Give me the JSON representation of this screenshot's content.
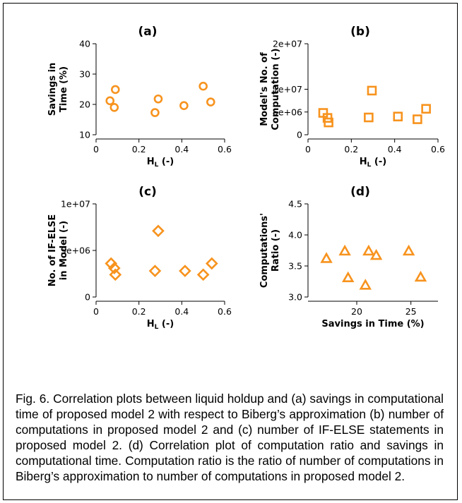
{
  "colors": {
    "marker": "#f7931e",
    "axis": "#000000"
  },
  "chart_data": [
    {
      "id": "a",
      "panel_label": "(a)",
      "type": "scatter",
      "marker": "circle",
      "xlabel_main": "H",
      "xlabel_sub": "L",
      "xlabel_rest": " (-)",
      "ylabel_lines": [
        "Savings in",
        "Time (%)"
      ],
      "xlim": [
        0,
        0.6
      ],
      "ylim": [
        10,
        40
      ],
      "xticks": [
        0,
        0.2,
        0.4,
        0.6
      ],
      "xtick_labels": [
        "0",
        "0.2",
        "0.4",
        "0.6"
      ],
      "yticks": [
        10,
        20,
        30,
        40
      ],
      "ytick_labels": [
        "10",
        "20",
        "30",
        "40"
      ],
      "x": [
        0.065,
        0.085,
        0.09,
        0.275,
        0.29,
        0.41,
        0.5,
        0.535
      ],
      "y": [
        21.2,
        19.0,
        24.9,
        17.3,
        21.8,
        19.6,
        26.0,
        20.8
      ]
    },
    {
      "id": "b",
      "panel_label": "(b)",
      "type": "scatter",
      "marker": "square",
      "xlabel_main": "H",
      "xlabel_sub": "L",
      "xlabel_rest": " (-)",
      "ylabel_lines": [
        "Model's No. of",
        "Computation (-)"
      ],
      "xlim": [
        0,
        0.6
      ],
      "ylim": [
        0,
        20000000
      ],
      "xticks": [
        0,
        0.2,
        0.4,
        0.6
      ],
      "xtick_labels": [
        "0",
        "0.2",
        "0.4",
        "0.6"
      ],
      "yticks": [
        0,
        5000000,
        10000000,
        20000000
      ],
      "ytick_labels": [
        "0",
        "5e+06",
        "1e+07",
        "2e+07"
      ],
      "x": [
        0.07,
        0.09,
        0.095,
        0.28,
        0.295,
        0.415,
        0.505,
        0.545
      ],
      "y": [
        4800000,
        3700000,
        2700000,
        3800000,
        9700000,
        4000000,
        3400000,
        5700000
      ]
    },
    {
      "id": "c",
      "panel_label": "(c)",
      "type": "scatter",
      "marker": "diamond",
      "xlabel_main": "H",
      "xlabel_sub": "L",
      "xlabel_rest": " (-)",
      "ylabel_lines": [
        "No. of IF-ELSE",
        "in Model (-)"
      ],
      "xlim": [
        0,
        0.6
      ],
      "ylim": [
        0,
        10000000
      ],
      "xticks": [
        0,
        0.2,
        0.4,
        0.6
      ],
      "xtick_labels": [
        "0",
        "0.2",
        "0.4",
        "0.6"
      ],
      "yticks": [
        0,
        5000000,
        10000000
      ],
      "ytick_labels": [
        "0",
        "5e+06",
        "1e+07"
      ],
      "x": [
        0.07,
        0.085,
        0.09,
        0.275,
        0.29,
        0.415,
        0.5,
        0.54
      ],
      "y": [
        3600000,
        3100000,
        2400000,
        2800000,
        7100000,
        2800000,
        2400000,
        3600000
      ]
    },
    {
      "id": "d",
      "panel_label": "(d)",
      "type": "scatter",
      "marker": "triangle",
      "xlabel": "Savings in Time (%)",
      "ylabel_lines": [
        "Computations'",
        "Ratio (-)"
      ],
      "xlim": [
        15.5,
        27.5
      ],
      "ylim": [
        3.0,
        4.5
      ],
      "xticks": [
        20,
        25
      ],
      "xtick_labels": [
        "20",
        "25"
      ],
      "yticks": [
        3.0,
        3.5,
        4.0,
        4.5
      ],
      "ytick_labels": [
        "3.0",
        "3.5",
        "4.0",
        "4.5"
      ],
      "x": [
        17.2,
        18.9,
        19.2,
        20.8,
        21.1,
        21.8,
        24.8,
        25.9
      ],
      "y": [
        3.62,
        3.74,
        3.31,
        3.19,
        3.74,
        3.67,
        3.74,
        3.32
      ]
    }
  ],
  "caption": "Fig. 6. Correlation plots between liquid holdup and (a) savings in computational time of proposed model 2 with respect to Biberg’s approximation (b) number of computations in proposed model 2 and (c) number of IF-ELSE statements in proposed model 2. (d) Correlation plot of computation ratio and savings in computational time. Computation ratio is the ratio of number of computations in Biberg’s approximation to number of computations in proposed model 2."
}
